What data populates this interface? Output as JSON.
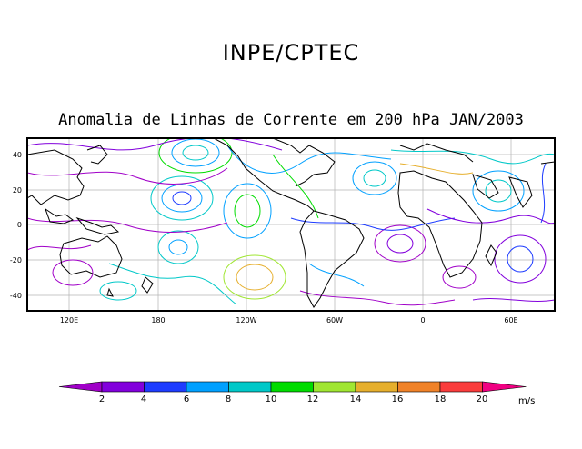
{
  "header": {
    "title": "INPE/CPTEC",
    "subtitle": "Anomalia de Linhas de Corrente em 200 hPa JAN/2003"
  },
  "map": {
    "lon_labels": [
      "120E",
      "180",
      "120W",
      "60W",
      "0",
      "60E"
    ],
    "lat_labels": [
      "40",
      "20",
      "0",
      "-20",
      "-40"
    ]
  },
  "colorbar": {
    "labels": [
      "2",
      "4",
      "6",
      "8",
      "10",
      "12",
      "14",
      "16",
      "18",
      "20"
    ],
    "units": "m/s",
    "colors": [
      "#a000c8",
      "#8200dc",
      "#1e3cff",
      "#00a0ff",
      "#00c8c8",
      "#00dc00",
      "#a0e632",
      "#e6af2d",
      "#f08228",
      "#fa3c3c",
      "#f00082"
    ]
  }
}
